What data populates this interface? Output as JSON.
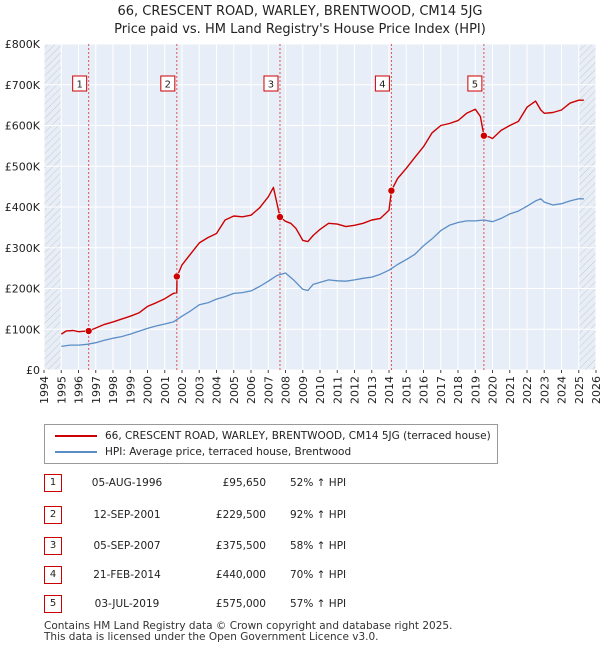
{
  "header": {
    "title": "66, CRESCENT ROAD, WARLEY, BRENTWOOD, CM14 5JG",
    "subtitle": "Price paid vs. HM Land Registry's House Price Index (HPI)"
  },
  "chart_data": {
    "type": "line",
    "xlim": [
      1994.0,
      2026.0
    ],
    "ylim": [
      0,
      800000
    ],
    "ytick_values": [
      0,
      100000,
      200000,
      300000,
      400000,
      500000,
      600000,
      700000,
      800000
    ],
    "ytick_labels": [
      "£0",
      "£100K",
      "£200K",
      "£300K",
      "£400K",
      "£500K",
      "£600K",
      "£700K",
      "£800K"
    ],
    "xtick_labels": [
      "1994",
      "1995",
      "1996",
      "1997",
      "1998",
      "1999",
      "2000",
      "2001",
      "2002",
      "2003",
      "2004",
      "2005",
      "2006",
      "2007",
      "2008",
      "2009",
      "2010",
      "2011",
      "2012",
      "2013",
      "2014",
      "2015",
      "2016",
      "2017",
      "2018",
      "2019",
      "2020",
      "2021",
      "2022",
      "2023",
      "2024",
      "2025",
      "2026"
    ],
    "hatch_ranges": [
      [
        1994.0,
        1995.0
      ],
      [
        2025.0,
        2026.0
      ]
    ],
    "series": [
      {
        "name": "66, CRESCENT ROAD, WARLEY, BRENTWOOD, CM14 5JG (terraced house)",
        "color": "#cc0000",
        "points": [
          [
            1995.0,
            88000
          ],
          [
            1995.3,
            96000
          ],
          [
            1995.7,
            97000
          ],
          [
            1996.0,
            94000
          ],
          [
            1996.3,
            95000
          ],
          [
            1996.59,
            95650
          ],
          [
            1997.0,
            103000
          ],
          [
            1997.5,
            112000
          ],
          [
            1998.0,
            118000
          ],
          [
            1998.5,
            125000
          ],
          [
            1999.0,
            132000
          ],
          [
            1999.5,
            140000
          ],
          [
            2000.0,
            156000
          ],
          [
            2000.5,
            165000
          ],
          [
            2001.0,
            175000
          ],
          [
            2001.5,
            188000
          ],
          [
            2001.7,
            190000
          ],
          [
            2001.71,
            229500
          ],
          [
            2002.0,
            258000
          ],
          [
            2002.5,
            285000
          ],
          [
            2003.0,
            312000
          ],
          [
            2003.5,
            325000
          ],
          [
            2004.0,
            335000
          ],
          [
            2004.5,
            368000
          ],
          [
            2005.0,
            378000
          ],
          [
            2005.5,
            376000
          ],
          [
            2006.0,
            380000
          ],
          [
            2006.5,
            398000
          ],
          [
            2007.0,
            425000
          ],
          [
            2007.3,
            448000
          ],
          [
            2007.68,
            375500
          ],
          [
            2008.0,
            365000
          ],
          [
            2008.3,
            360000
          ],
          [
            2008.6,
            348000
          ],
          [
            2009.0,
            318000
          ],
          [
            2009.3,
            315000
          ],
          [
            2009.6,
            330000
          ],
          [
            2010.0,
            345000
          ],
          [
            2010.5,
            360000
          ],
          [
            2011.0,
            358000
          ],
          [
            2011.5,
            352000
          ],
          [
            2012.0,
            355000
          ],
          [
            2012.5,
            360000
          ],
          [
            2013.0,
            368000
          ],
          [
            2013.5,
            372000
          ],
          [
            2014.0,
            392000
          ],
          [
            2014.14,
            440000
          ],
          [
            2014.5,
            470000
          ],
          [
            2015.0,
            495000
          ],
          [
            2015.5,
            522000
          ],
          [
            2016.0,
            548000
          ],
          [
            2016.5,
            582000
          ],
          [
            2017.0,
            600000
          ],
          [
            2017.5,
            605000
          ],
          [
            2018.0,
            612000
          ],
          [
            2018.5,
            630000
          ],
          [
            2019.0,
            640000
          ],
          [
            2019.3,
            622000
          ],
          [
            2019.5,
            575000
          ],
          [
            2019.8,
            572000
          ],
          [
            2020.0,
            568000
          ],
          [
            2020.5,
            588000
          ],
          [
            2021.0,
            600000
          ],
          [
            2021.5,
            610000
          ],
          [
            2022.0,
            645000
          ],
          [
            2022.5,
            660000
          ],
          [
            2022.8,
            638000
          ],
          [
            2023.0,
            630000
          ],
          [
            2023.5,
            632000
          ],
          [
            2024.0,
            638000
          ],
          [
            2024.5,
            655000
          ],
          [
            2025.0,
            662000
          ],
          [
            2025.3,
            662000
          ]
        ]
      },
      {
        "name": "HPI: Average price, terraced house, Brentwood",
        "color": "#5b8ec7",
        "points": [
          [
            1995.0,
            58000
          ],
          [
            1995.5,
            61000
          ],
          [
            1996.0,
            61000
          ],
          [
            1996.5,
            63000
          ],
          [
            1997.0,
            67000
          ],
          [
            1997.5,
            73000
          ],
          [
            1998.0,
            78000
          ],
          [
            1998.5,
            82000
          ],
          [
            1999.0,
            88000
          ],
          [
            1999.5,
            95000
          ],
          [
            2000.0,
            102000
          ],
          [
            2000.5,
            108000
          ],
          [
            2001.0,
            113000
          ],
          [
            2001.5,
            118000
          ],
          [
            2002.0,
            132000
          ],
          [
            2002.5,
            145000
          ],
          [
            2003.0,
            160000
          ],
          [
            2003.5,
            165000
          ],
          [
            2004.0,
            174000
          ],
          [
            2004.5,
            180000
          ],
          [
            2005.0,
            188000
          ],
          [
            2005.5,
            190000
          ],
          [
            2006.0,
            194000
          ],
          [
            2006.5,
            205000
          ],
          [
            2007.0,
            218000
          ],
          [
            2007.5,
            232000
          ],
          [
            2008.0,
            238000
          ],
          [
            2008.5,
            220000
          ],
          [
            2009.0,
            198000
          ],
          [
            2009.3,
            195000
          ],
          [
            2009.6,
            210000
          ],
          [
            2010.0,
            215000
          ],
          [
            2010.5,
            221000
          ],
          [
            2011.0,
            219000
          ],
          [
            2011.5,
            218000
          ],
          [
            2012.0,
            221000
          ],
          [
            2012.5,
            225000
          ],
          [
            2013.0,
            228000
          ],
          [
            2013.5,
            235000
          ],
          [
            2014.0,
            245000
          ],
          [
            2014.5,
            259000
          ],
          [
            2015.0,
            271000
          ],
          [
            2015.5,
            284000
          ],
          [
            2016.0,
            305000
          ],
          [
            2016.5,
            322000
          ],
          [
            2017.0,
            342000
          ],
          [
            2017.5,
            355000
          ],
          [
            2018.0,
            362000
          ],
          [
            2018.5,
            366000
          ],
          [
            2019.0,
            366000
          ],
          [
            2019.5,
            368000
          ],
          [
            2020.0,
            364000
          ],
          [
            2020.5,
            372000
          ],
          [
            2021.0,
            383000
          ],
          [
            2021.5,
            390000
          ],
          [
            2022.0,
            402000
          ],
          [
            2022.5,
            415000
          ],
          [
            2022.8,
            420000
          ],
          [
            2023.0,
            412000
          ],
          [
            2023.5,
            405000
          ],
          [
            2024.0,
            408000
          ],
          [
            2024.5,
            415000
          ],
          [
            2025.0,
            420000
          ],
          [
            2025.3,
            420000
          ]
        ]
      }
    ],
    "sales": [
      {
        "label": "1",
        "date": "05-AUG-1996",
        "x": 1996.59,
        "price": 95650,
        "price_text": "£95,650",
        "hpi": "52% ↑ HPI"
      },
      {
        "label": "2",
        "date": "12-SEP-2001",
        "x": 2001.7,
        "price": 229500,
        "price_text": "£229,500",
        "hpi": "92% ↑ HPI"
      },
      {
        "label": "3",
        "date": "05-SEP-2007",
        "x": 2007.68,
        "price": 375500,
        "price_text": "£375,500",
        "hpi": "58% ↑ HPI"
      },
      {
        "label": "4",
        "date": "21-FEB-2014",
        "x": 2014.14,
        "price": 440000,
        "price_text": "£440,000",
        "hpi": "70% ↑ HPI"
      },
      {
        "label": "5",
        "date": "03-JUL-2019",
        "x": 2019.5,
        "price": 575000,
        "price_text": "£575,000",
        "hpi": "57% ↑ HPI"
      }
    ]
  },
  "legend": {
    "red_label": "66, CRESCENT ROAD, WARLEY, BRENTWOOD, CM14 5JG (terraced house)",
    "blue_label": "HPI: Average price, terraced house, Brentwood"
  },
  "footer": {
    "line1": "Contains HM Land Registry data © Crown copyright and database right 2025.",
    "line2": "This data is licensed under the Open Government Licence v3.0."
  }
}
